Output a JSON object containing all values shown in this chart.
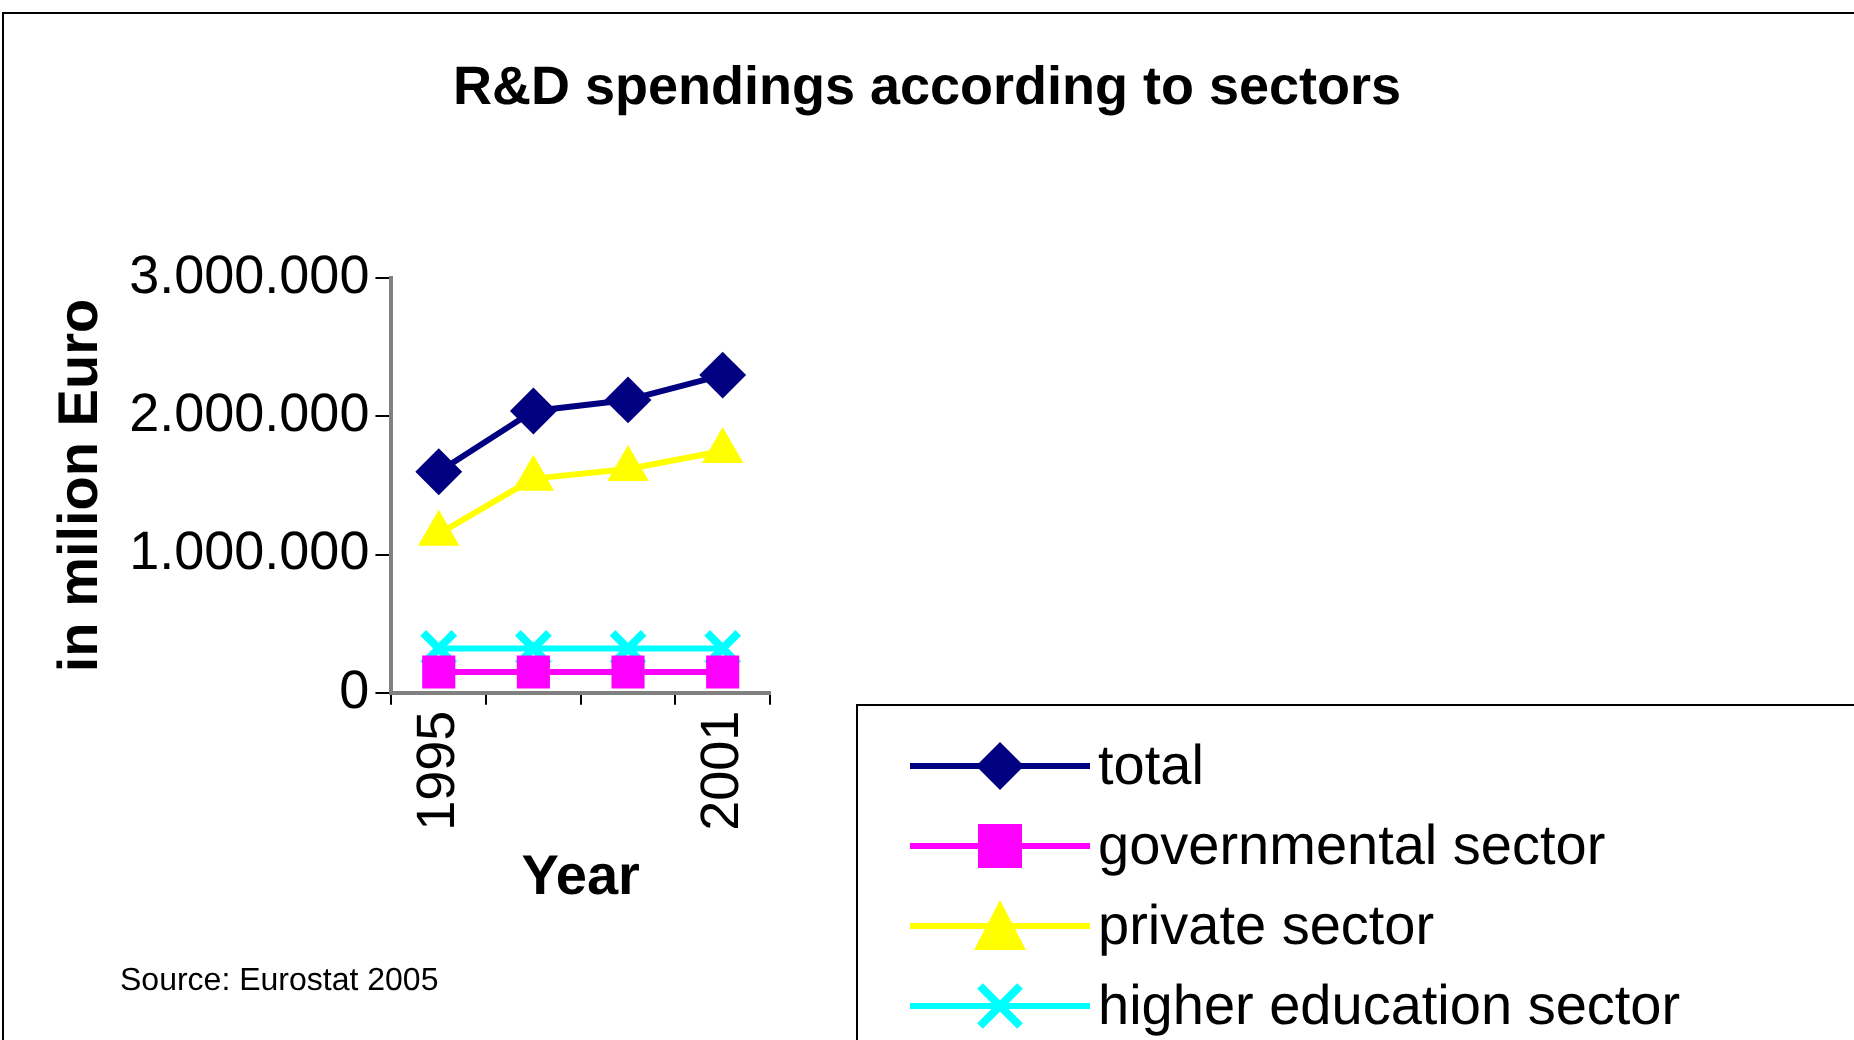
{
  "chart_data": {
    "type": "line",
    "title": "R&D spendings according to sectors",
    "xlabel": "Year",
    "ylabel": "in milion Euro",
    "categories": [
      "1995",
      null,
      null,
      "2001"
    ],
    "series": [
      {
        "name": "total",
        "color": "#000080",
        "marker": "diamond",
        "values": [
          1600000,
          2040000,
          2120000,
          2300000
        ]
      },
      {
        "name": "governmental sector",
        "color": "#ff00ff",
        "marker": "square",
        "values": [
          150000,
          150000,
          150000,
          150000
        ]
      },
      {
        "name": "private sector",
        "color": "#ffff00",
        "marker": "triangle",
        "values": [
          1150000,
          1550000,
          1620000,
          1750000
        ]
      },
      {
        "name": "higher education sector",
        "color": "#00ffff",
        "marker": "cross",
        "values": [
          320000,
          320000,
          320000,
          320000
        ]
      }
    ],
    "ylim": [
      0,
      3000000
    ],
    "yticks": [
      0,
      {
        "value": 1000000,
        "label": "1.000.000"
      },
      {
        "value": 2000000,
        "label": "2.000.000"
      },
      {
        "value": 3000000,
        "label": "3.000.000"
      }
    ],
    "grid": false,
    "legend": "bottom right",
    "annotations": [
      "Source: Eurostat 2005"
    ]
  }
}
